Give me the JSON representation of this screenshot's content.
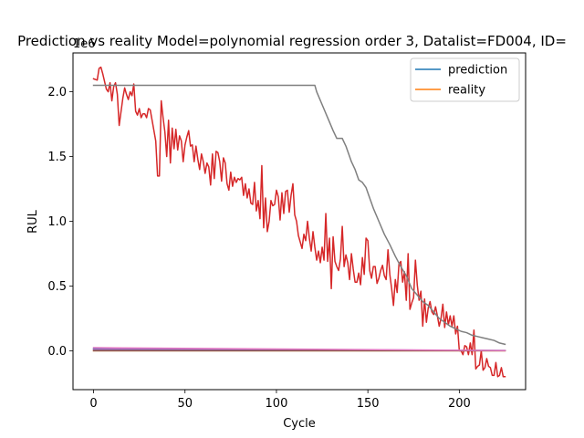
{
  "chart_data": {
    "type": "line",
    "title": "Prediction vs reality Model=polynomial regression order 3, Datalist=FD004, ID=",
    "xlabel": "Cycle",
    "ylabel": "RUL",
    "y_offset_label": "1e6",
    "xlim": [
      -11.25,
      236.25
    ],
    "ylim": [
      -300000,
      2300000
    ],
    "x_ticks": [
      0,
      50,
      100,
      150,
      200
    ],
    "y_ticks": [
      0,
      500000,
      1000000,
      1500000,
      2000000
    ],
    "y_tick_labels": [
      "0.0",
      "0.5",
      "1.0",
      "1.5",
      "2.0"
    ],
    "legend_position": "top-right",
    "grid": false,
    "series": [
      {
        "name": "prediction",
        "color": "#1f77b4",
        "in_legend": true,
        "points": [
          [
            0,
            15000
          ],
          [
            225,
            2000
          ]
        ]
      },
      {
        "name": "reality",
        "color": "#ff7f0e",
        "in_legend": true,
        "points": [
          [
            0,
            0
          ],
          [
            225,
            0
          ]
        ]
      },
      {
        "name": "",
        "color": "#d62728",
        "in_legend": false,
        "points": [
          [
            0,
            2100000
          ],
          [
            2,
            2090000
          ],
          [
            3,
            2180000
          ],
          [
            4,
            2190000
          ],
          [
            5,
            2140000
          ],
          [
            7,
            2020000
          ],
          [
            8,
            2000000
          ],
          [
            9,
            2070000
          ],
          [
            10,
            1930000
          ],
          [
            11,
            2040000
          ],
          [
            12,
            2070000
          ],
          [
            13,
            1980000
          ],
          [
            14,
            1740000
          ],
          [
            16,
            1950000
          ],
          [
            17,
            2030000
          ],
          [
            18,
            1980000
          ],
          [
            19,
            1940000
          ],
          [
            20,
            2000000
          ],
          [
            21,
            1970000
          ],
          [
            22,
            2060000
          ],
          [
            23,
            1850000
          ],
          [
            24,
            1820000
          ],
          [
            25,
            1870000
          ],
          [
            26,
            1800000
          ],
          [
            27,
            1830000
          ],
          [
            28,
            1830000
          ],
          [
            29,
            1800000
          ],
          [
            30,
            1870000
          ],
          [
            31,
            1860000
          ],
          [
            32,
            1780000
          ],
          [
            33,
            1700000
          ],
          [
            34,
            1620000
          ],
          [
            35,
            1350000
          ],
          [
            36,
            1350000
          ],
          [
            37,
            1930000
          ],
          [
            38,
            1800000
          ],
          [
            39,
            1690000
          ],
          [
            40,
            1500000
          ],
          [
            41,
            1780000
          ],
          [
            42,
            1450000
          ],
          [
            43,
            1720000
          ],
          [
            44,
            1560000
          ],
          [
            45,
            1710000
          ],
          [
            46,
            1550000
          ],
          [
            47,
            1660000
          ],
          [
            48,
            1620000
          ],
          [
            49,
            1460000
          ],
          [
            50,
            1590000
          ],
          [
            51,
            1650000
          ],
          [
            52,
            1700000
          ],
          [
            53,
            1580000
          ],
          [
            54,
            1590000
          ],
          [
            55,
            1460000
          ],
          [
            56,
            1580000
          ],
          [
            57,
            1480000
          ],
          [
            58,
            1400000
          ],
          [
            59,
            1520000
          ],
          [
            60,
            1460000
          ],
          [
            61,
            1370000
          ],
          [
            62,
            1450000
          ],
          [
            63,
            1420000
          ],
          [
            64,
            1280000
          ],
          [
            65,
            1520000
          ],
          [
            66,
            1330000
          ],
          [
            67,
            1540000
          ],
          [
            68,
            1530000
          ],
          [
            69,
            1460000
          ],
          [
            70,
            1310000
          ],
          [
            71,
            1490000
          ],
          [
            72,
            1450000
          ],
          [
            73,
            1290000
          ],
          [
            74,
            1240000
          ],
          [
            75,
            1380000
          ],
          [
            76,
            1270000
          ],
          [
            77,
            1340000
          ],
          [
            78,
            1300000
          ],
          [
            79,
            1330000
          ],
          [
            80,
            1320000
          ],
          [
            81,
            1340000
          ],
          [
            82,
            1200000
          ],
          [
            83,
            1290000
          ],
          [
            84,
            1180000
          ],
          [
            85,
            1250000
          ],
          [
            86,
            1140000
          ],
          [
            87,
            1130000
          ],
          [
            88,
            1300000
          ],
          [
            89,
            1080000
          ],
          [
            90,
            1160000
          ],
          [
            91,
            1020000
          ],
          [
            92,
            1430000
          ],
          [
            93,
            950000
          ],
          [
            94,
            1180000
          ],
          [
            95,
            920000
          ],
          [
            96,
            1000000
          ],
          [
            97,
            1160000
          ],
          [
            98,
            1120000
          ],
          [
            99,
            1130000
          ],
          [
            100,
            1240000
          ],
          [
            101,
            1190000
          ],
          [
            102,
            1010000
          ],
          [
            103,
            1220000
          ],
          [
            104,
            1060000
          ],
          [
            105,
            1230000
          ],
          [
            106,
            1240000
          ],
          [
            107,
            1070000
          ],
          [
            108,
            1200000
          ],
          [
            109,
            1290000
          ],
          [
            110,
            1050000
          ],
          [
            111,
            1000000
          ],
          [
            112,
            890000
          ],
          [
            113,
            840000
          ],
          [
            114,
            790000
          ],
          [
            115,
            900000
          ],
          [
            116,
            850000
          ],
          [
            117,
            1000000
          ],
          [
            118,
            870000
          ],
          [
            119,
            770000
          ],
          [
            120,
            920000
          ],
          [
            121,
            800000
          ],
          [
            122,
            700000
          ],
          [
            123,
            770000
          ],
          [
            124,
            680000
          ],
          [
            125,
            800000
          ],
          [
            126,
            700000
          ],
          [
            127,
            1060000
          ],
          [
            128,
            690000
          ],
          [
            129,
            870000
          ],
          [
            130,
            480000
          ],
          [
            131,
            880000
          ],
          [
            132,
            690000
          ],
          [
            133,
            650000
          ],
          [
            134,
            620000
          ],
          [
            135,
            710000
          ],
          [
            136,
            960000
          ],
          [
            137,
            650000
          ],
          [
            138,
            740000
          ],
          [
            139,
            680000
          ],
          [
            140,
            550000
          ],
          [
            141,
            750000
          ],
          [
            142,
            630000
          ],
          [
            143,
            530000
          ],
          [
            144,
            530000
          ],
          [
            145,
            600000
          ],
          [
            146,
            510000
          ],
          [
            147,
            720000
          ],
          [
            148,
            590000
          ],
          [
            149,
            870000
          ],
          [
            150,
            850000
          ],
          [
            151,
            620000
          ],
          [
            152,
            560000
          ],
          [
            153,
            650000
          ],
          [
            154,
            650000
          ],
          [
            155,
            520000
          ],
          [
            156,
            560000
          ],
          [
            157,
            620000
          ],
          [
            158,
            660000
          ],
          [
            159,
            580000
          ],
          [
            160,
            550000
          ],
          [
            161,
            780000
          ],
          [
            162,
            590000
          ],
          [
            163,
            480000
          ],
          [
            164,
            350000
          ],
          [
            165,
            550000
          ],
          [
            166,
            450000
          ],
          [
            167,
            670000
          ],
          [
            168,
            690000
          ],
          [
            169,
            530000
          ],
          [
            170,
            610000
          ],
          [
            171,
            390000
          ],
          [
            172,
            750000
          ],
          [
            173,
            320000
          ],
          [
            174,
            370000
          ],
          [
            175,
            410000
          ],
          [
            176,
            700000
          ],
          [
            177,
            510000
          ],
          [
            178,
            390000
          ],
          [
            179,
            460000
          ],
          [
            180,
            190000
          ],
          [
            181,
            400000
          ],
          [
            182,
            220000
          ],
          [
            183,
            330000
          ],
          [
            184,
            380000
          ],
          [
            185,
            300000
          ],
          [
            186,
            280000
          ],
          [
            187,
            340000
          ],
          [
            188,
            270000
          ],
          [
            189,
            190000
          ],
          [
            190,
            250000
          ],
          [
            191,
            360000
          ],
          [
            192,
            180000
          ],
          [
            193,
            300000
          ],
          [
            194,
            200000
          ],
          [
            195,
            270000
          ],
          [
            196,
            190000
          ],
          [
            197,
            270000
          ],
          [
            198,
            130000
          ],
          [
            199,
            190000
          ],
          [
            200,
            0
          ],
          [
            201,
            0
          ],
          [
            202,
            -30000
          ],
          [
            203,
            40000
          ],
          [
            204,
            30000
          ],
          [
            205,
            -30000
          ],
          [
            206,
            60000
          ],
          [
            207,
            -30000
          ],
          [
            208,
            160000
          ],
          [
            209,
            -140000
          ],
          [
            210,
            -120000
          ],
          [
            211,
            -110000
          ],
          [
            212,
            0
          ],
          [
            213,
            -150000
          ],
          [
            214,
            -130000
          ],
          [
            215,
            -60000
          ],
          [
            216,
            -120000
          ],
          [
            217,
            -130000
          ],
          [
            218,
            -190000
          ],
          [
            219,
            -190000
          ],
          [
            220,
            -90000
          ],
          [
            221,
            -200000
          ],
          [
            222,
            -190000
          ],
          [
            223,
            -130000
          ],
          [
            224,
            -200000
          ],
          [
            225,
            -200000
          ]
        ]
      },
      {
        "name": "",
        "color": "#9467bd",
        "in_legend": false,
        "points": [
          [
            0,
            12000
          ],
          [
            225,
            1000
          ]
        ]
      },
      {
        "name": "",
        "color": "#8c564b",
        "in_legend": false,
        "points": [
          [
            0,
            0
          ],
          [
            225,
            0
          ]
        ]
      },
      {
        "name": "",
        "color": "#e377c2",
        "in_legend": false,
        "points": [
          [
            0,
            24000
          ],
          [
            225,
            2000
          ]
        ]
      },
      {
        "name": "",
        "color": "#7f7f7f",
        "in_legend": false,
        "points": [
          [
            0,
            2050000
          ],
          [
            121,
            2050000
          ],
          [
            122,
            2000000
          ],
          [
            125,
            1900000
          ],
          [
            128,
            1800000
          ],
          [
            131,
            1700000
          ],
          [
            133,
            1640000
          ],
          [
            136,
            1640000
          ],
          [
            138,
            1580000
          ],
          [
            141,
            1460000
          ],
          [
            143,
            1400000
          ],
          [
            145,
            1320000
          ],
          [
            147,
            1300000
          ],
          [
            149,
            1260000
          ],
          [
            151,
            1180000
          ],
          [
            153,
            1100000
          ],
          [
            156,
            1000000
          ],
          [
            159,
            900000
          ],
          [
            162,
            820000
          ],
          [
            165,
            730000
          ],
          [
            168,
            650000
          ],
          [
            171,
            580000
          ],
          [
            174,
            480000
          ],
          [
            177,
            430000
          ],
          [
            180,
            380000
          ],
          [
            183,
            350000
          ],
          [
            186,
            300000
          ],
          [
            189,
            250000
          ],
          [
            192,
            220000
          ],
          [
            195,
            190000
          ],
          [
            198,
            170000
          ],
          [
            201,
            150000
          ],
          [
            204,
            140000
          ],
          [
            207,
            120000
          ],
          [
            210,
            110000
          ],
          [
            213,
            100000
          ],
          [
            216,
            90000
          ],
          [
            219,
            80000
          ],
          [
            222,
            60000
          ],
          [
            225,
            50000
          ]
        ]
      }
    ]
  }
}
